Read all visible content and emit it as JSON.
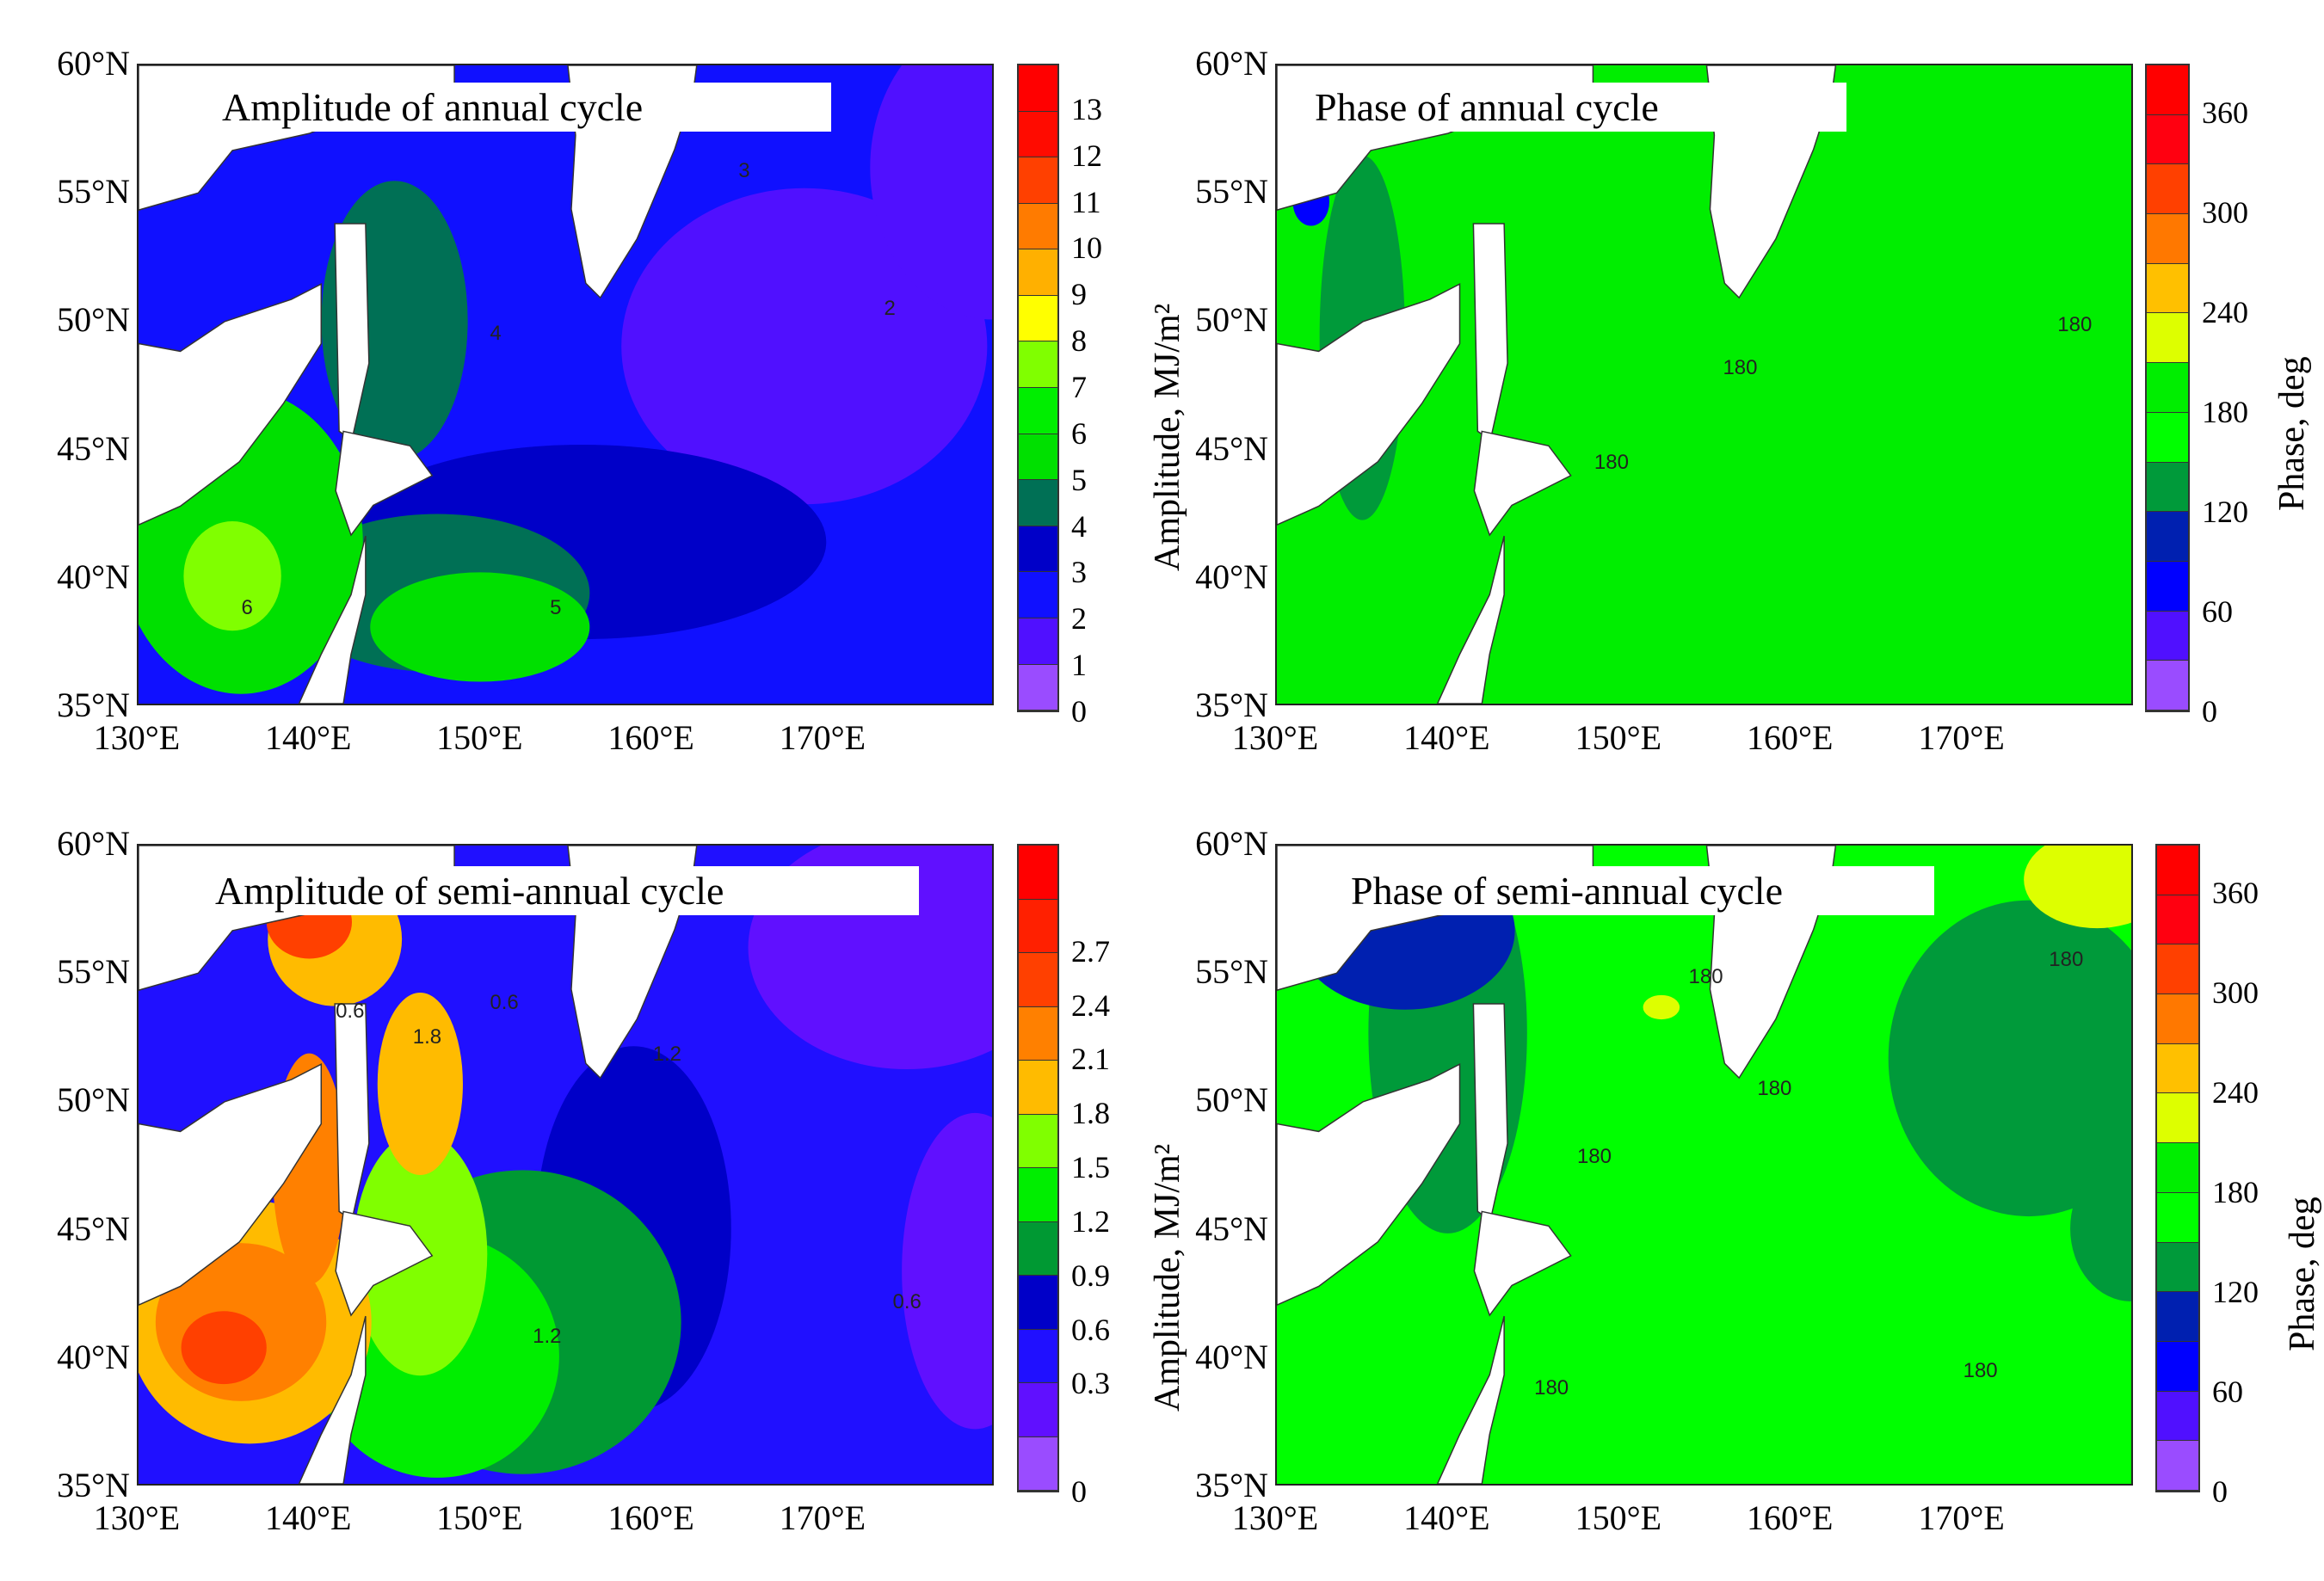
{
  "lat_labels": [
    "60°N",
    "55°N",
    "50°N",
    "45°N",
    "40°N",
    "35°N"
  ],
  "lon_labels": [
    "130°E",
    "140°E",
    "150°E",
    "160°E",
    "170°E"
  ],
  "panels": [
    {
      "title": "Amplitude of annual cycle",
      "colorbar_label": "Amplitude, MJ/m²",
      "colorbar_ticks": [
        "13",
        "12",
        "11",
        "10",
        "9",
        "8",
        "7",
        "6",
        "5",
        "4",
        "3",
        "2",
        "1",
        "0"
      ],
      "colorbar_colors": [
        "#ff0000",
        "#ff0b00",
        "#ff4000",
        "#ff7b00",
        "#ffb000",
        "#ffff00",
        "#80ff00",
        "#00ee00",
        "#00e000",
        "#007055",
        "#0000c8",
        "#1010ff",
        "#5010ff",
        "#9a4cff"
      ],
      "contour_labels": [
        "3",
        "2",
        "4",
        "5",
        "6"
      ]
    },
    {
      "title": "Phase of annual cycle",
      "colorbar_label": "Phase, deg",
      "colorbar_ticks": [
        "360",
        "300",
        "240",
        "180",
        "120",
        "60",
        "0"
      ],
      "colorbar_colors": [
        "#ff0000",
        "#ff0010",
        "#ff4000",
        "#ff7800",
        "#ffc000",
        "#ddff00",
        "#00ee00",
        "#00ff00",
        "#009a3a",
        "#0020b0",
        "#0000ff",
        "#5010ff",
        "#9a4cff"
      ],
      "contour_labels": [
        "180",
        "180",
        "180"
      ]
    },
    {
      "title": "Amplitude of semi-annual cycle",
      "colorbar_label": "Amplitude, MJ/m²",
      "colorbar_ticks": [
        "2.7",
        "2.4",
        "2.1",
        "1.8",
        "1.5",
        "1.2",
        "0.9",
        "0.6",
        "0.3",
        "0"
      ],
      "colorbar_colors": [
        "#ff0000",
        "#ff2000",
        "#ff4000",
        "#ff8000",
        "#ffbb00",
        "#80ff00",
        "#00ee00",
        "#009933",
        "#0000c8",
        "#2010ff",
        "#6010ff",
        "#9a4cff"
      ],
      "contour_labels": [
        "0.6",
        "1.2",
        "1.8",
        "0.6",
        "1.2",
        "0.6"
      ]
    },
    {
      "title": "Phase of semi-annual cycle",
      "colorbar_label": "Phase, deg",
      "colorbar_ticks": [
        "360",
        "300",
        "240",
        "180",
        "120",
        "60",
        "0"
      ],
      "colorbar_colors": [
        "#ff0000",
        "#ff0010",
        "#ff4000",
        "#ff7800",
        "#ffc000",
        "#ddff00",
        "#00ee00",
        "#00ff00",
        "#009a3a",
        "#0020b0",
        "#0000ff",
        "#5010ff",
        "#9a4cff"
      ],
      "contour_labels": [
        "180",
        "180",
        "180",
        "180",
        "180",
        "180"
      ]
    }
  ]
}
